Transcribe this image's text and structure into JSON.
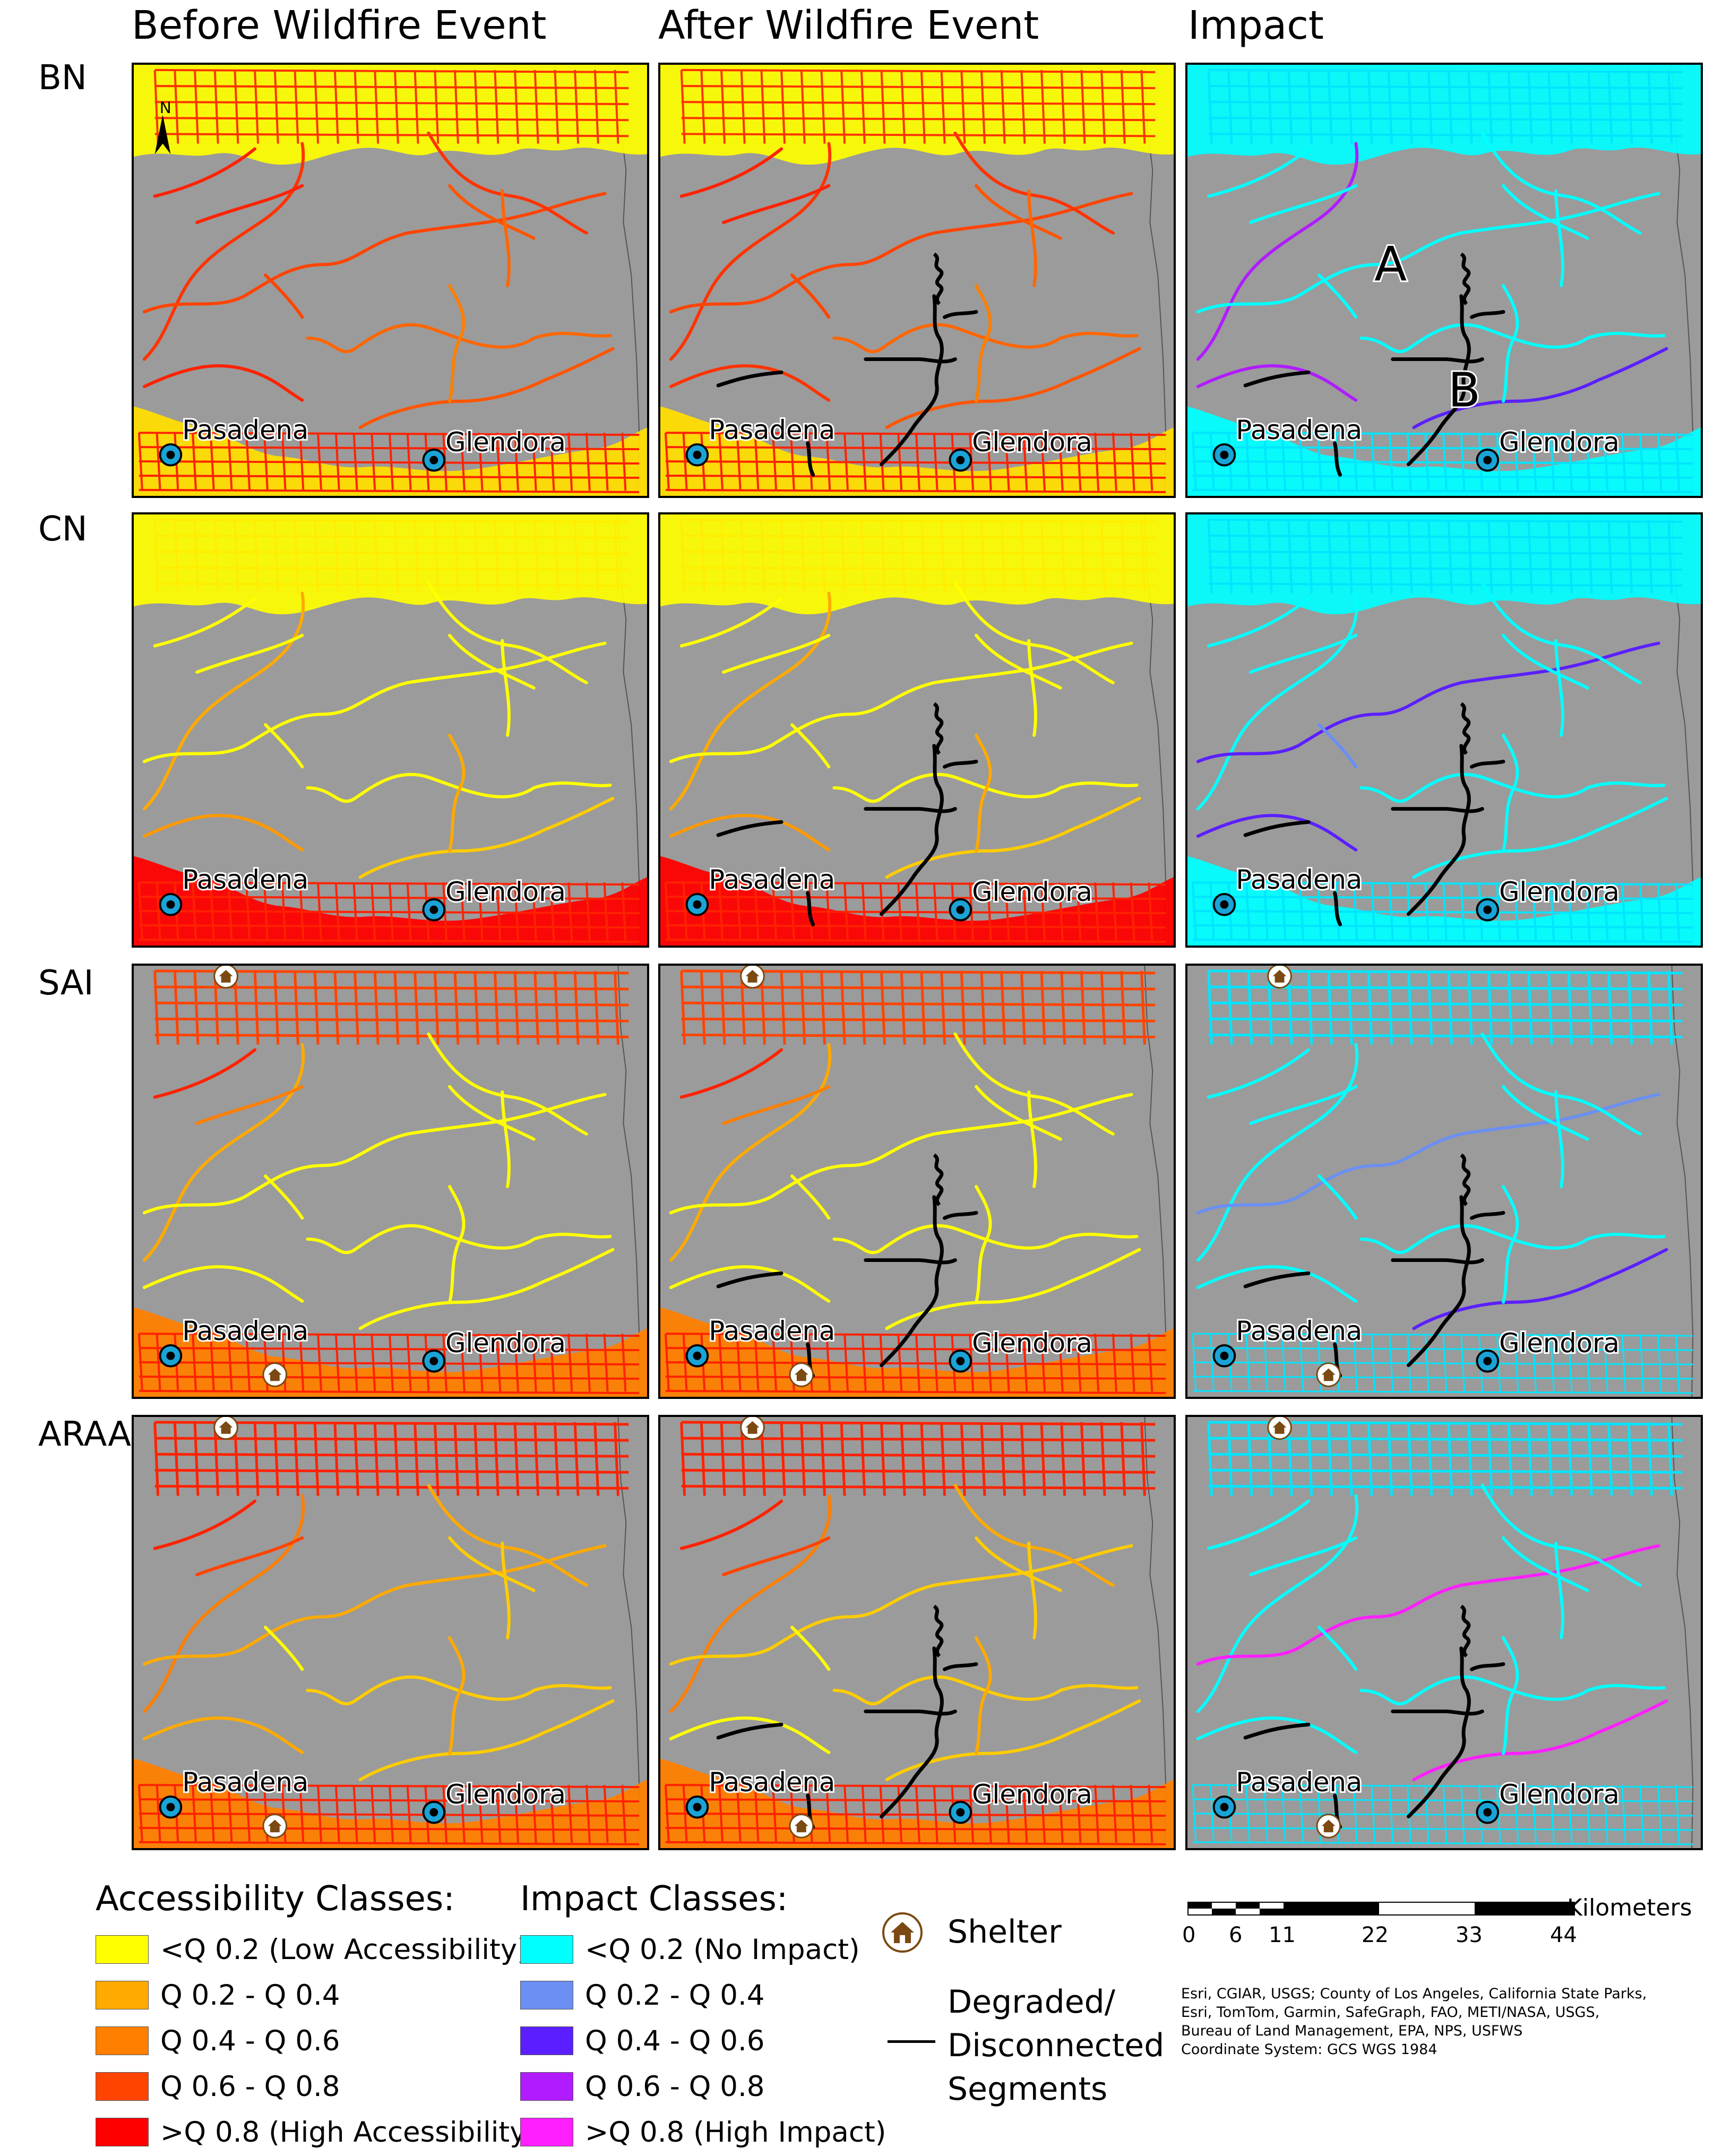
{
  "columns": [
    "Before Wildfire Event",
    "After Wildfire Event",
    "Impact"
  ],
  "rows": [
    "BN",
    "CN",
    "SAI",
    "ARAA"
  ],
  "places": {
    "pasadena": "Pasadena",
    "glendora": "Glendora"
  },
  "panel_annotations": {
    "a": "A",
    "b": "B"
  },
  "north_arrow": {
    "label": "N"
  },
  "legend": {
    "accessibility": {
      "title": "Accessibility Classes:",
      "items": [
        {
          "label": "<Q 0.2 (Low Accessibility)",
          "color": "#ffff00"
        },
        {
          "label": "Q 0.2 - Q 0.4",
          "color": "#ffaa00"
        },
        {
          "label": "Q 0.4 - Q 0.6",
          "color": "#ff7f00"
        },
        {
          "label": "Q 0.6 - Q 0.8",
          "color": "#ff4400"
        },
        {
          "label": ">Q 0.8 (High Accessibility)",
          "color": "#ff0000"
        }
      ]
    },
    "impact": {
      "title": "Impact Classes:",
      "items": [
        {
          "label": "<Q 0.2 (No Impact)",
          "color": "#00ffff"
        },
        {
          "label": "Q 0.2 - Q 0.4",
          "color": "#6b8ff2"
        },
        {
          "label": "Q 0.4 - Q 0.6",
          "color": "#5b1fff"
        },
        {
          "label": "Q 0.6 - Q 0.8",
          "color": "#b01cff"
        },
        {
          "label": ">Q 0.8 (High Impact)",
          "color": "#ff1fff"
        }
      ]
    },
    "shelter": {
      "label": "Shelter",
      "icon": "house-icon"
    },
    "degraded": [
      "Degraded/",
      "Disconnected",
      "Segments"
    ]
  },
  "scale_bar": {
    "unit": "Kilometers",
    "ticks": [
      "0",
      "6",
      "11",
      "22",
      "33",
      "44"
    ]
  },
  "credits": [
    "Esri, CGIAR, USGS; County of Los Angeles, California State Parks,",
    "Esri, TomTom, Garmin, SafeGraph, FAO, METI/NASA, USGS,",
    "Bureau of Land Management, EPA, NPS, USFWS",
    "Coordinate System: GCS WGS 1984"
  ],
  "colors": {
    "background": "#9b9b9b",
    "degraded_segment": "#000000",
    "location_marker": "#1aa3d6",
    "shelter_icon": "#7a4a12"
  }
}
